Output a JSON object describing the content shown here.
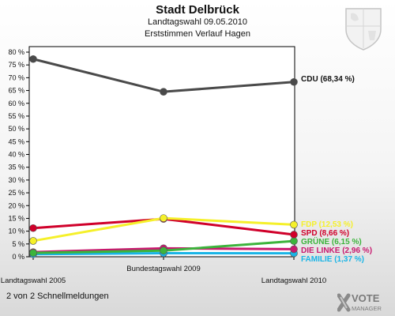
{
  "header": {
    "title": "Stadt Delbrück",
    "subtitle": "Landtagswahl 09.05.2010",
    "subtitle2": "Erststimmen Verlauf Hagen"
  },
  "footer": {
    "note": "2 von 2 Schnellmeldungen",
    "logo_top": "VOTE",
    "logo_bottom": "MANAGER"
  },
  "chart_data": {
    "type": "line",
    "categories": [
      "Landtagswahl 2005",
      "Bundestagswahl 2009",
      "Landtagswahl 2010"
    ],
    "ylim": [
      0,
      80
    ],
    "yticks": [
      0,
      5,
      10,
      15,
      20,
      25,
      30,
      35,
      40,
      45,
      50,
      55,
      60,
      65,
      70,
      75,
      80
    ],
    "ytick_labels": [
      "0 %",
      "5 %",
      "10 %",
      "15 %",
      "20 %",
      "25 %",
      "30 %",
      "35 %",
      "40 %",
      "45 %",
      "50 %",
      "55 %",
      "60 %",
      "65 %",
      "70 %",
      "75 %",
      "80 %"
    ],
    "grid": false,
    "series": [
      {
        "name": "CDU",
        "label": "CDU (68,34 %)",
        "values": [
          77.3,
          64.5,
          68.34
        ],
        "color": "#4a4a4a",
        "label_color": "#111111"
      },
      {
        "name": "FDP",
        "label": "FDP (12,53 %)",
        "values": [
          6.2,
          15.1,
          12.53
        ],
        "color": "#f5f02a",
        "label_color": "#f5f02a"
      },
      {
        "name": "SPD",
        "label": "SPD (8,66 %)",
        "values": [
          11.2,
          14.8,
          8.66
        ],
        "color": "#d0002a",
        "label_color": "#d0002a"
      },
      {
        "name": "GRÜNE",
        "label": "GRÜNE (6,15 %)",
        "values": [
          1.5,
          2.4,
          6.15
        ],
        "color": "#3cb43c",
        "label_color": "#3cb43c"
      },
      {
        "name": "DIE LINKE",
        "label": "DIE LINKE (2,96 %)",
        "values": [
          1.8,
          3.3,
          2.96
        ],
        "color": "#c8186e",
        "label_color": "#c8186e"
      },
      {
        "name": "FAMILIE",
        "label": "FAMILIE (1,37 %)",
        "values": [
          1.0,
          1.4,
          1.37
        ],
        "color": "#19b4e6",
        "label_color": "#19b4e6"
      }
    ]
  }
}
